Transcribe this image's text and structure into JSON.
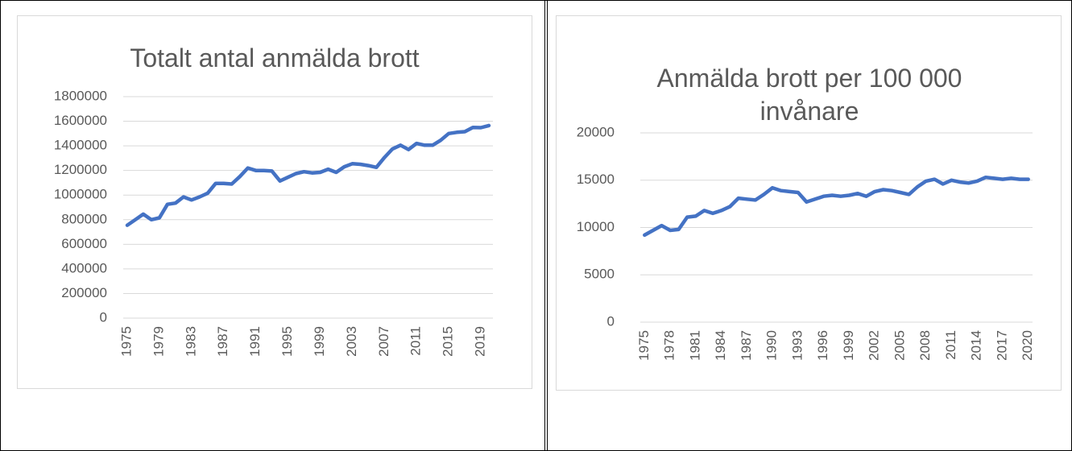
{
  "chart_data": [
    {
      "type": "line",
      "title": "Totalt antal anmälda brott",
      "categories": [
        "1975",
        null,
        null,
        null,
        "1979",
        null,
        null,
        null,
        "1983",
        null,
        null,
        null,
        "1987",
        null,
        null,
        null,
        "1991",
        null,
        null,
        null,
        "1995",
        null,
        null,
        null,
        "1999",
        null,
        null,
        null,
        "2003",
        null,
        null,
        null,
        "2007",
        null,
        null,
        null,
        "2011",
        null,
        null,
        null,
        "2015",
        null,
        null,
        null,
        "2019",
        null
      ],
      "values": [
        755000,
        800000,
        845000,
        800000,
        815000,
        925000,
        935000,
        985000,
        960000,
        985000,
        1015000,
        1095000,
        1095000,
        1090000,
        1150000,
        1220000,
        1200000,
        1200000,
        1195000,
        1115000,
        1145000,
        1175000,
        1190000,
        1180000,
        1185000,
        1210000,
        1185000,
        1230000,
        1255000,
        1250000,
        1240000,
        1225000,
        1305000,
        1375000,
        1405000,
        1370000,
        1420000,
        1405000,
        1405000,
        1445000,
        1500000,
        1510000,
        1515000,
        1550000,
        1548000,
        1565000
      ],
      "color": "#4472c4",
      "ylim": [
        0,
        1800000
      ],
      "yticks": [
        0,
        200000,
        400000,
        600000,
        800000,
        1000000,
        1200000,
        1400000,
        1600000,
        1800000
      ],
      "grid": true
    },
    {
      "type": "line",
      "title": "Anmälda brott per 100 000 invånare",
      "categories": [
        "1975",
        null,
        null,
        "1978",
        null,
        null,
        "1981",
        null,
        null,
        "1984",
        null,
        null,
        "1987",
        null,
        null,
        "1990",
        null,
        null,
        "1993",
        null,
        null,
        "1996",
        null,
        null,
        "1999",
        null,
        null,
        "2002",
        null,
        null,
        "2005",
        null,
        null,
        "2008",
        null,
        null,
        "2011",
        null,
        null,
        "2014",
        null,
        null,
        "2017",
        null,
        null,
        "2020"
      ],
      "values": [
        9200,
        9700,
        10200,
        9700,
        9800,
        11100,
        11200,
        11800,
        11500,
        11800,
        12200,
        13100,
        13000,
        12900,
        13500,
        14200,
        13900,
        13800,
        13700,
        12700,
        13000,
        13300,
        13400,
        13300,
        13400,
        13600,
        13300,
        13800,
        14000,
        13900,
        13700,
        13500,
        14300,
        14900,
        15100,
        14600,
        15000,
        14800,
        14700,
        14900,
        15300,
        15200,
        15100,
        15200,
        15100,
        15100
      ],
      "color": "#4472c4",
      "ylim": [
        0,
        20000
      ],
      "yticks": [
        0,
        5000,
        10000,
        15000,
        20000
      ],
      "grid": true
    }
  ]
}
